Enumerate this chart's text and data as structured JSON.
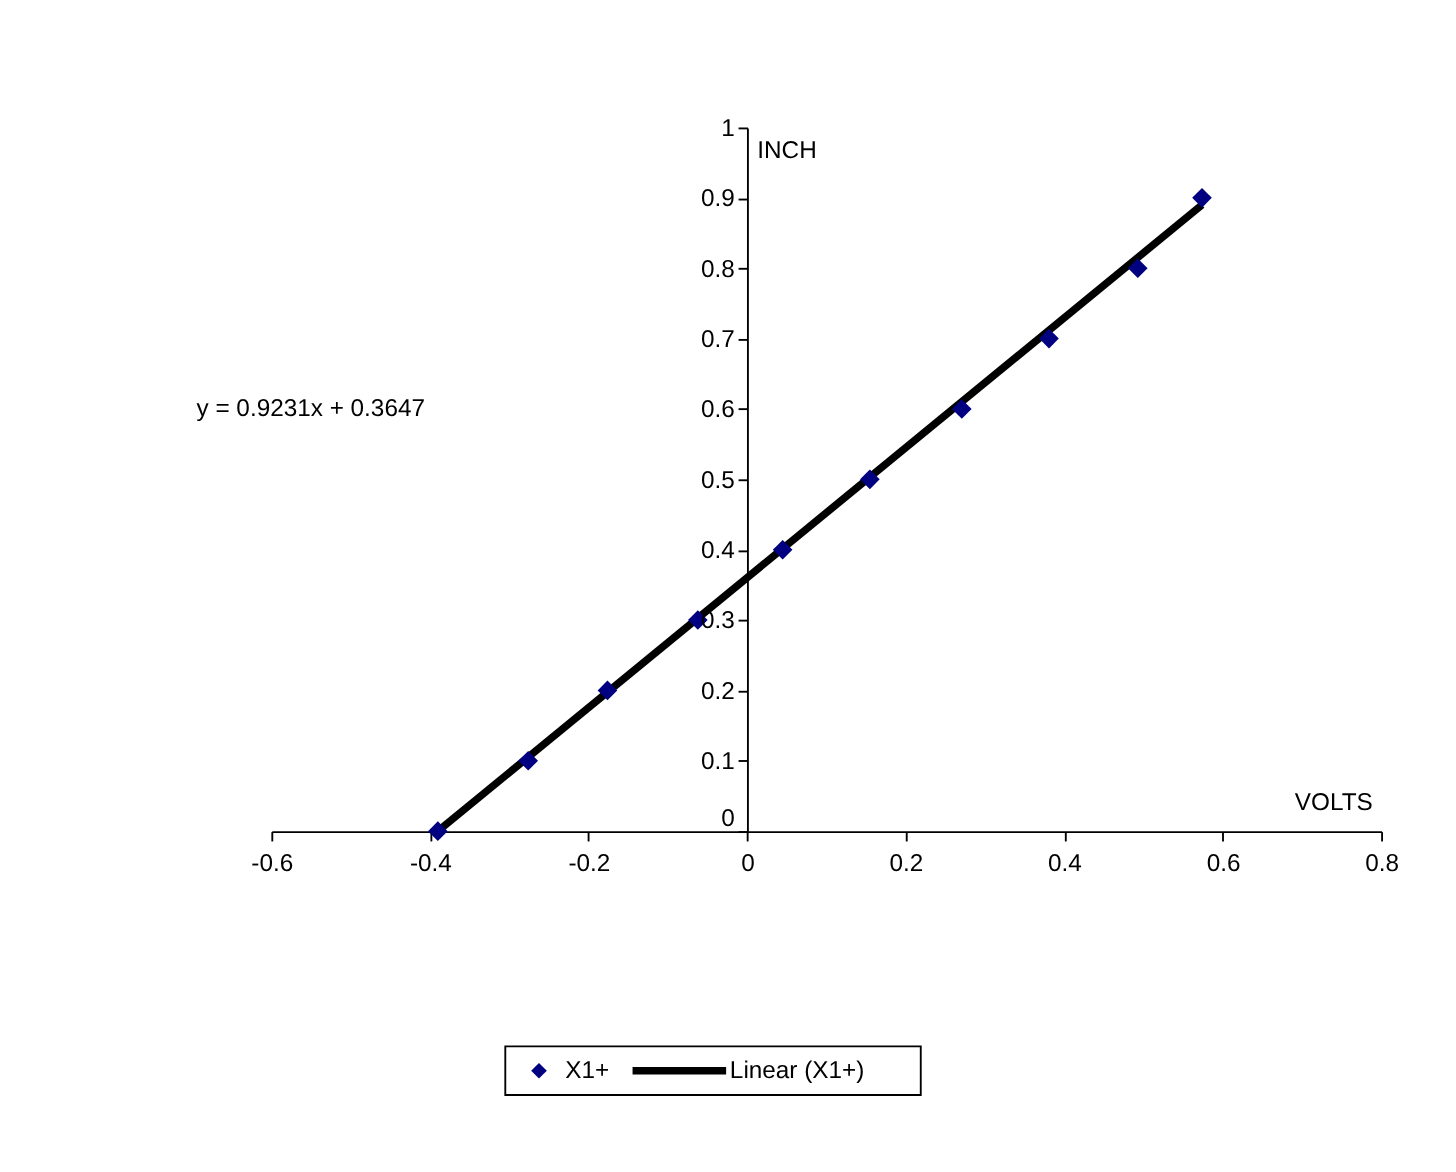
{
  "chart_data": {
    "type": "scatter",
    "xlabel": "VOLTS",
    "ylabel": "INCH",
    "xlim": [
      -0.6,
      0.8
    ],
    "xticks": [
      -0.6,
      -0.4,
      -0.2,
      0,
      0.2,
      0.4,
      0.6,
      0.8
    ],
    "ylim": [
      0,
      1
    ],
    "yticks": [
      0,
      0.1,
      0.2,
      0.3,
      0.4,
      0.5,
      0.6,
      0.7,
      0.8,
      0.9,
      1
    ],
    "grid": false,
    "legend": "bottom",
    "annotations": [
      "y = 0.9231x + 0.3647"
    ],
    "series": [
      {
        "name": "X1+",
        "color": "#000080",
        "marker": "diamond",
        "x": [
          -0.39,
          -0.276,
          -0.176,
          -0.062,
          0.045,
          0.155,
          0.271,
          0.381,
          0.493,
          0.574
        ],
        "values": [
          0,
          0.1,
          0.2,
          0.3,
          0.4,
          0.5,
          0.6,
          0.7,
          0.8,
          0.9
        ]
      },
      {
        "name": "Linear (X1+)",
        "type": "line",
        "color": "#000000",
        "line_style": "solid",
        "x": [
          -0.39,
          0.574
        ],
        "values": [
          0.0,
          0.89
        ]
      }
    ]
  }
}
